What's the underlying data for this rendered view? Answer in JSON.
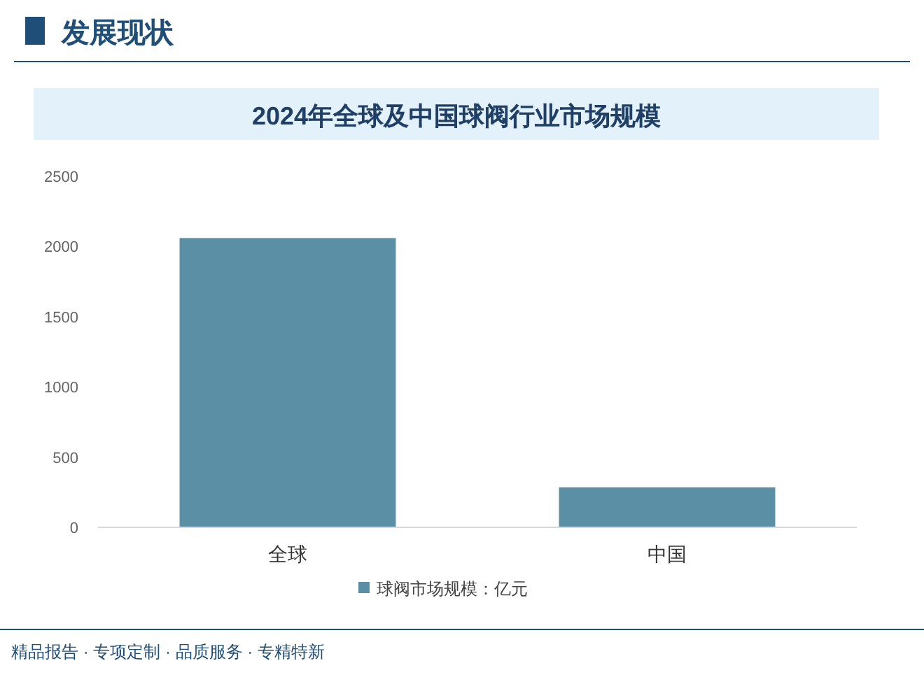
{
  "chart_data": {
    "type": "bar",
    "title": "2024年全球及中国球阀行业市场规模",
    "categories": [
      "全球",
      "中国"
    ],
    "series": [
      {
        "name": "球阀市场规模：亿元",
        "color": "#5b8fa6",
        "values": [
          2060,
          285
        ]
      }
    ],
    "ylim": [
      0,
      2500
    ],
    "yticks": [
      0,
      500,
      1000,
      1500,
      2000,
      2500
    ],
    "legend": "bottom",
    "annotations": [
      "发展现状",
      "精品报告 · 专项定制 · 品质服务 · 专精特新"
    ]
  }
}
